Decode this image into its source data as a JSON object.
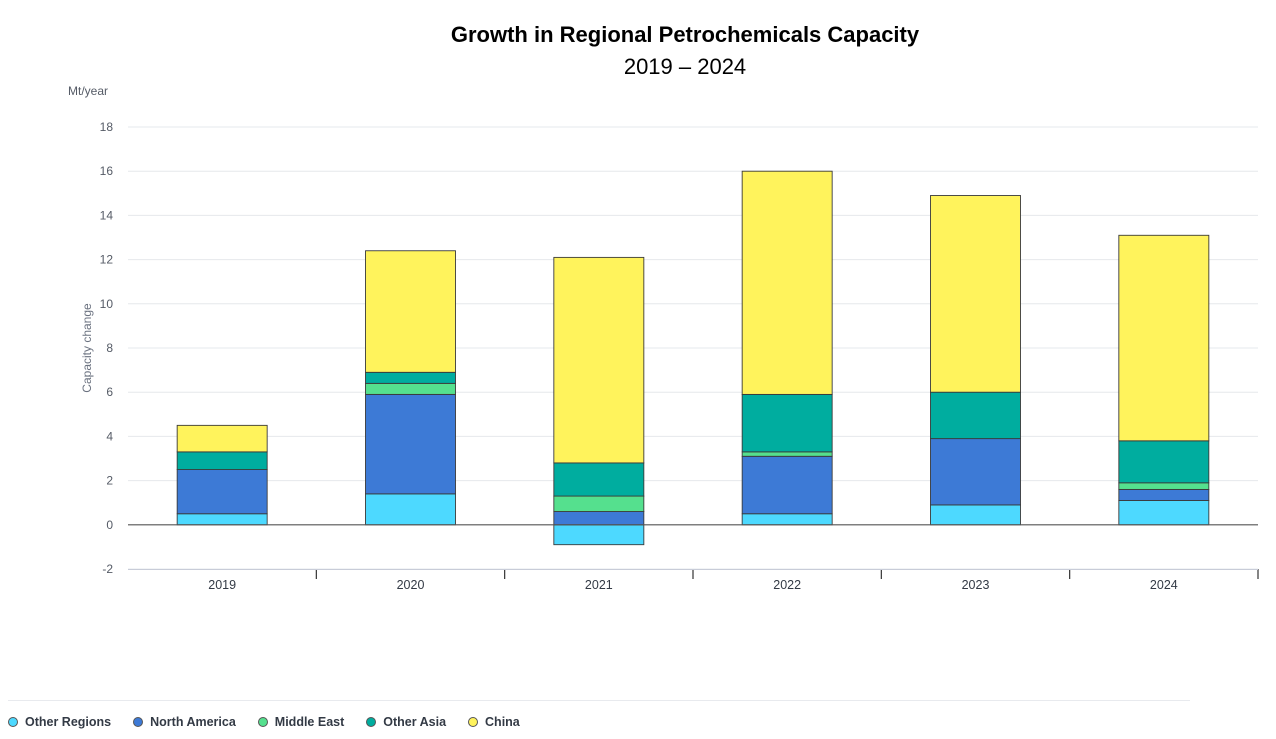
{
  "chart_data": {
    "type": "bar",
    "stacked": true,
    "title": "Growth in Regional Petrochemicals Capacity",
    "subtitle": "2019 – 2024",
    "unit_label": "Mt/year",
    "ylabel": "Capacity change",
    "xlabel": "",
    "ylim": [
      -2,
      18
    ],
    "yticks": [
      -2,
      0,
      2,
      4,
      6,
      8,
      10,
      12,
      14,
      16,
      18
    ],
    "categories": [
      "2019",
      "2020",
      "2021",
      "2022",
      "2023",
      "2024"
    ],
    "series": [
      {
        "name": "Other Regions",
        "color": "#4dd9ff",
        "values": [
          0.5,
          1.4,
          -0.9,
          0.5,
          0.9,
          1.1
        ]
      },
      {
        "name": "North America",
        "color": "#3d7ad6",
        "values": [
          2.0,
          4.5,
          0.6,
          2.6,
          3.0,
          0.5
        ]
      },
      {
        "name": "Middle East",
        "color": "#55e08e",
        "values": [
          0.0,
          0.5,
          0.7,
          0.2,
          0.0,
          0.3
        ]
      },
      {
        "name": "Other Asia",
        "color": "#00ad9f",
        "values": [
          0.8,
          0.5,
          1.5,
          2.6,
          2.1,
          1.9
        ]
      },
      {
        "name": "China",
        "color": "#fff35c",
        "values": [
          1.2,
          5.5,
          9.3,
          10.1,
          8.9,
          9.3
        ]
      }
    ],
    "legend_position": "bottom-left",
    "grid": true
  }
}
